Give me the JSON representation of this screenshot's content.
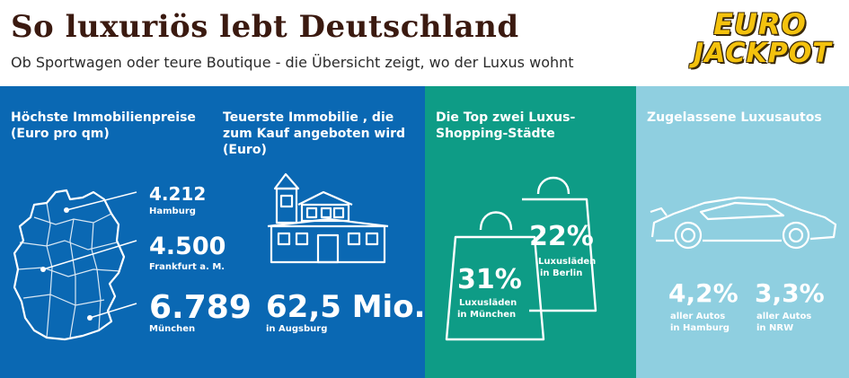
{
  "header": {
    "title": "So luxuriös lebt Deutschland",
    "subtitle": "Ob Sportwagen oder teure Boutique - die Übersicht zeigt, wo der Luxus wohnt",
    "logo_line1": "EURO",
    "logo_line2": "JACKPOT",
    "logo_color": "#f4c20d"
  },
  "immobilienpreise": {
    "title_line1": "Höchste Immobilienpreise",
    "title_line2": "(Euro pro qm)",
    "items": [
      {
        "value": "4.212",
        "city": "Hamburg"
      },
      {
        "value": "4.500",
        "city": "Frankfurt a. M."
      },
      {
        "value": "6.789",
        "city": "München"
      }
    ],
    "map_icon": "germany-map-icon"
  },
  "immobilie": {
    "title_line1": "Teuerste Immobilie , die",
    "title_line2": "zum Kauf angeboten wird",
    "title_line3": "(Euro)",
    "value": "62,5 Mio.",
    "city": "in Augsburg",
    "icon": "house-icon"
  },
  "shopping": {
    "title_line1": "Die Top zwei Luxus-",
    "title_line2": "Shopping-Städte",
    "items": [
      {
        "percent": "31%",
        "label1": "Luxusläden",
        "label2": "in München"
      },
      {
        "percent": "22%",
        "label1": "Luxusläden",
        "label2": "in Berlin"
      }
    ],
    "icon": "shopping-bag-icon"
  },
  "luxusautos": {
    "title": "Zugelassene Luxusautos",
    "items": [
      {
        "percent": "4,2%",
        "label1": "aller Autos",
        "label2": "in Hamburg"
      },
      {
        "percent": "3,3%",
        "label1": "aller Autos",
        "label2": "in NRW"
      }
    ],
    "icon": "sports-car-icon"
  },
  "colors": {
    "panel_blue": "#0a68b3",
    "panel_green": "#0e9c86",
    "panel_lightblue": "#8fcfe0",
    "title_brown": "#3b1a10"
  }
}
